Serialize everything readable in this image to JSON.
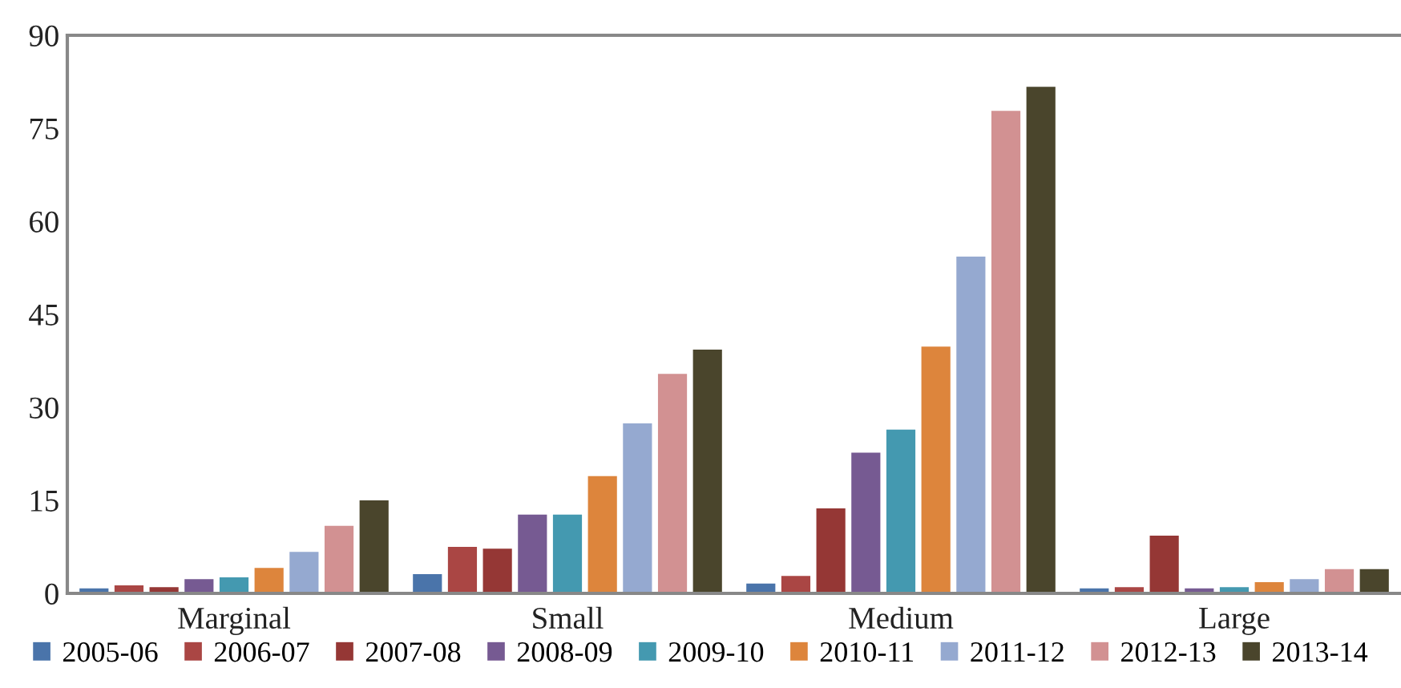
{
  "chart_data": {
    "type": "bar",
    "categories": [
      "Marginal",
      "Small",
      "Medium",
      "Large"
    ],
    "ylim": [
      0,
      90
    ],
    "yticks": [
      0,
      15,
      30,
      45,
      60,
      75,
      90
    ],
    "grid": false,
    "legend": "bottom",
    "series": [
      {
        "name": "2005-06",
        "color": "#4a74aa",
        "values": [
          0.8,
          3.1,
          1.6,
          0.8
        ]
      },
      {
        "name": "2006-07",
        "color": "#aa4644",
        "values": [
          1.3,
          7.5,
          2.8,
          1.0
        ]
      },
      {
        "name": "2007-08",
        "color": "#953735",
        "values": [
          1.0,
          7.2,
          13.7,
          9.3
        ]
      },
      {
        "name": "2008-09",
        "color": "#765a92",
        "values": [
          2.3,
          12.7,
          22.7,
          0.8
        ]
      },
      {
        "name": "2009-10",
        "color": "#4499b0",
        "values": [
          2.6,
          12.7,
          26.4,
          1.0
        ]
      },
      {
        "name": "2010-11",
        "color": "#dd853c",
        "values": [
          4.1,
          18.9,
          39.8,
          1.8
        ]
      },
      {
        "name": "2011-12",
        "color": "#95a9d0",
        "values": [
          6.7,
          27.4,
          54.3,
          2.3
        ]
      },
      {
        "name": "2012-13",
        "color": "#d29192",
        "values": [
          10.9,
          35.4,
          77.8,
          3.9
        ]
      },
      {
        "name": "2013-14",
        "color": "#4a452c",
        "values": [
          15.0,
          39.3,
          81.7,
          3.9
        ]
      }
    ]
  }
}
